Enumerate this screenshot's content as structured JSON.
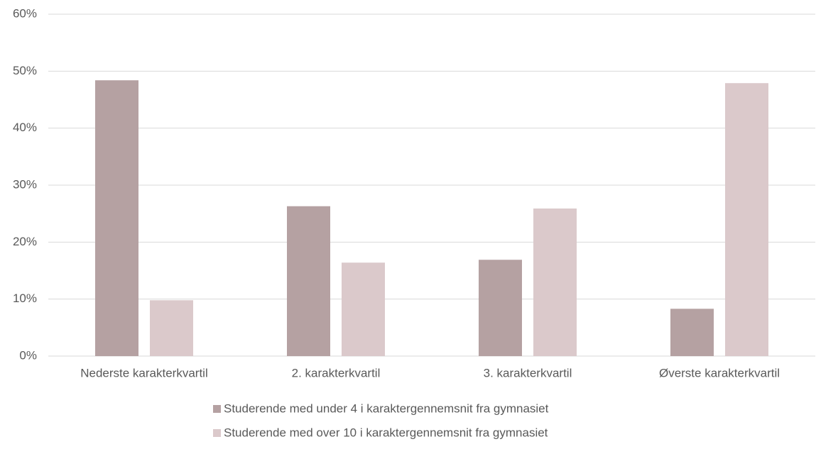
{
  "chart_data": {
    "type": "bar",
    "categories": [
      "Nederste karakterkvartil",
      "2. karakterkvartil",
      "3. karakterkvartil",
      "Øverste karakterkvartil"
    ],
    "series": [
      {
        "name": "Studerende med under 4 i karaktergennemsnit fra gymnasiet",
        "color": "#b5a1a2",
        "values": [
          48.4,
          26.3,
          16.9,
          8.3
        ]
      },
      {
        "name": "Studerende med over 10 i karaktergennemsnit fra gymnasiet",
        "color": "#dbc9cb",
        "values": [
          9.8,
          16.4,
          25.9,
          47.9
        ]
      }
    ],
    "ylim": [
      0,
      60
    ],
    "yticks": [
      {
        "value": 0,
        "label": "0%"
      },
      {
        "value": 10,
        "label": "10%"
      },
      {
        "value": 20,
        "label": "20%"
      },
      {
        "value": 30,
        "label": "30%"
      },
      {
        "value": 40,
        "label": "40%"
      },
      {
        "value": 50,
        "label": "50%"
      },
      {
        "value": 60,
        "label": "60%"
      }
    ],
    "grid": true,
    "legend": "bottom"
  }
}
